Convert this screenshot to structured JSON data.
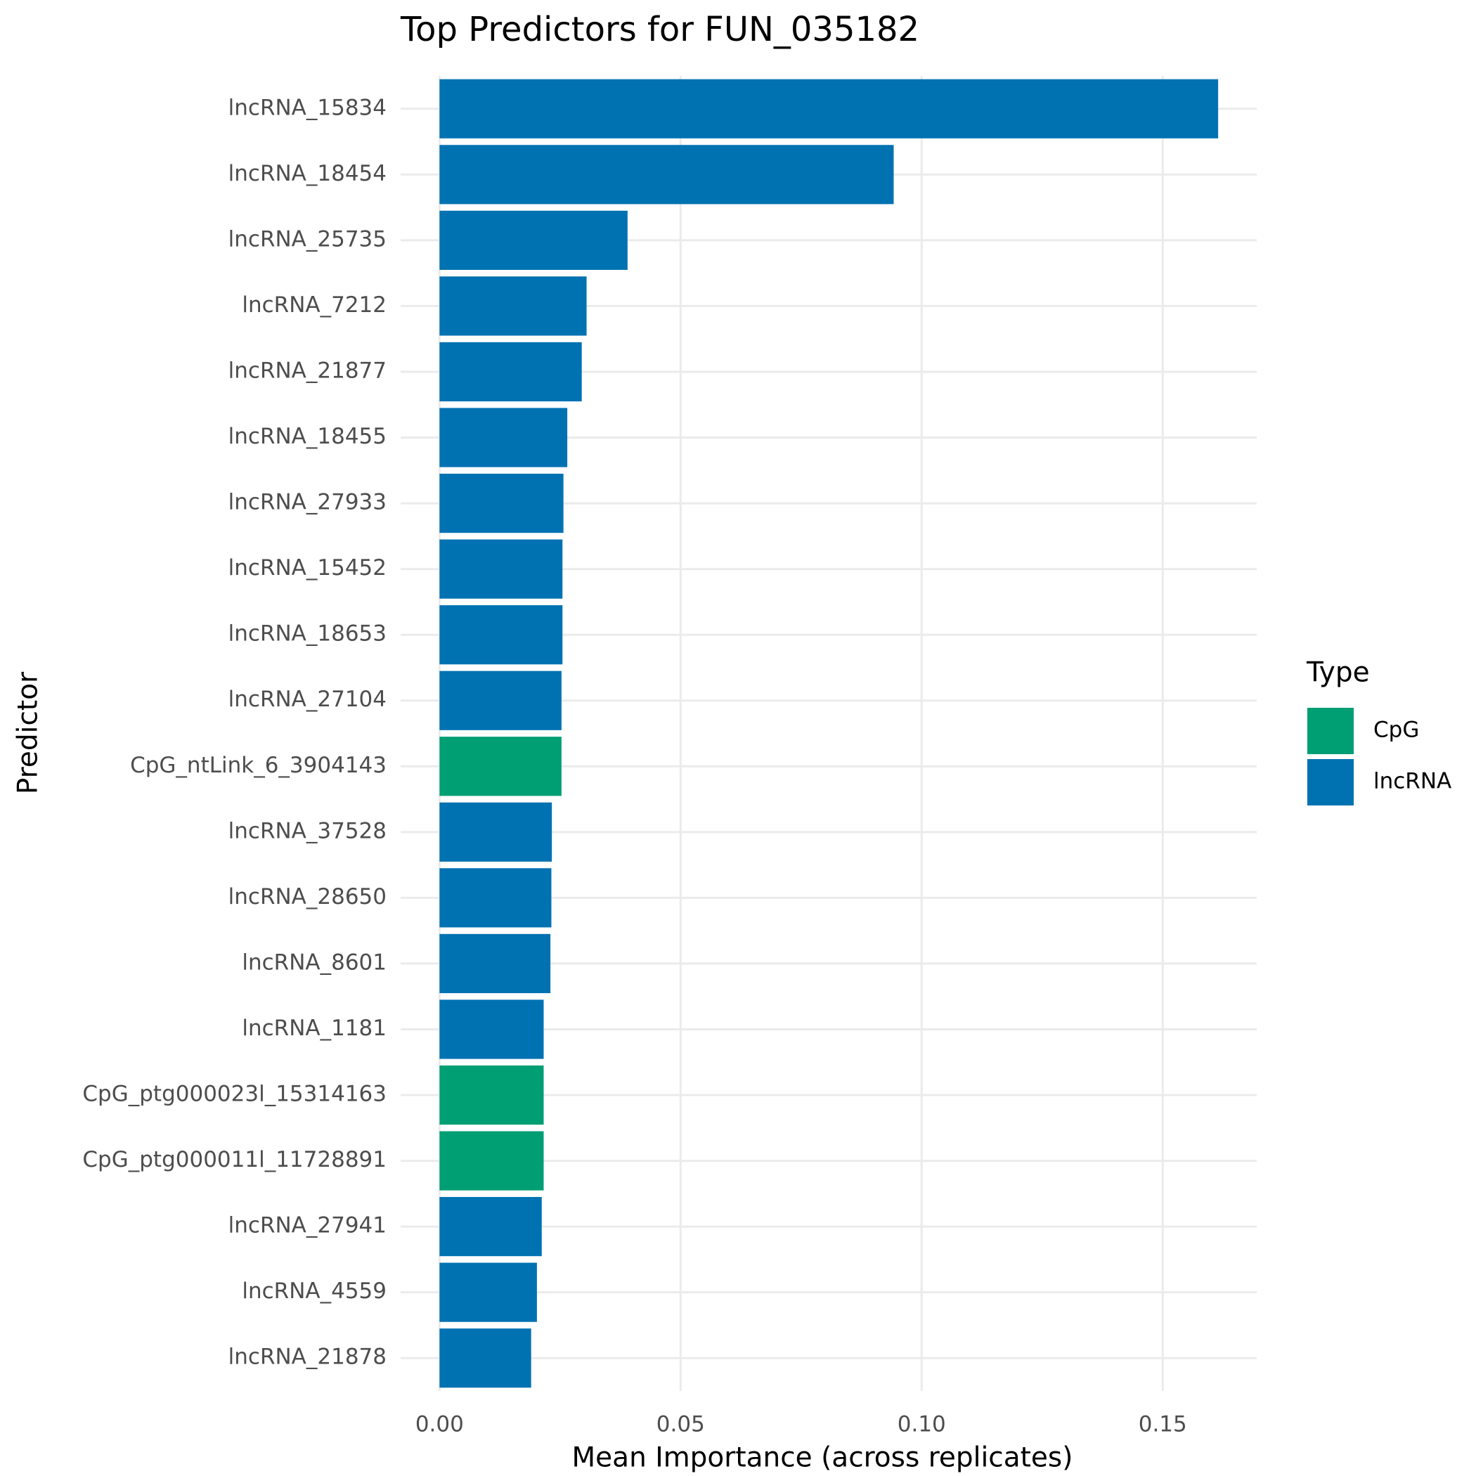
{
  "chart_data": {
    "type": "bar",
    "orientation": "horizontal",
    "title": "Top Predictors for FUN_035182",
    "x_label": "Mean Importance (across replicates)",
    "y_label": "Predictor",
    "legend_title": "Type",
    "categories": [
      "lncRNA_15834",
      "lncRNA_18454",
      "lncRNA_25735",
      "lncRNA_7212",
      "lncRNA_21877",
      "lncRNA_18455",
      "lncRNA_27933",
      "lncRNA_15452",
      "lncRNA_18653",
      "lncRNA_27104",
      "CpG_ntLink_6_3904143",
      "lncRNA_37528",
      "lncRNA_28650",
      "lncRNA_8601",
      "lncRNA_1181",
      "CpG_ptg000023l_15314163",
      "CpG_ptg000011l_11728891",
      "lncRNA_27941",
      "lncRNA_4559",
      "lncRNA_21878"
    ],
    "series": [
      {
        "name": "CpG",
        "color": "#009e73",
        "values": [
          null,
          null,
          null,
          null,
          null,
          null,
          null,
          null,
          null,
          null,
          0.0253,
          null,
          null,
          null,
          null,
          0.0216,
          0.0216,
          null,
          null,
          null
        ]
      },
      {
        "name": "lncRNA",
        "color": "#0072b2",
        "values": [
          0.1615,
          0.0942,
          0.039,
          0.0305,
          0.0295,
          0.0265,
          0.0257,
          0.0255,
          0.0255,
          0.0253,
          null,
          0.0233,
          0.0232,
          0.023,
          0.0216,
          null,
          null,
          0.0212,
          0.0202,
          0.019
        ]
      }
    ],
    "xlim": [
      -0.00807,
      0.1695
    ],
    "xticks": [
      {
        "value": 0,
        "label": "0.00"
      },
      {
        "value": 0.05,
        "label": "0.05"
      },
      {
        "value": 0.1,
        "label": "0.10"
      },
      {
        "value": 0.15,
        "label": "0.15"
      }
    ],
    "grid": true,
    "legend_position": "right"
  }
}
